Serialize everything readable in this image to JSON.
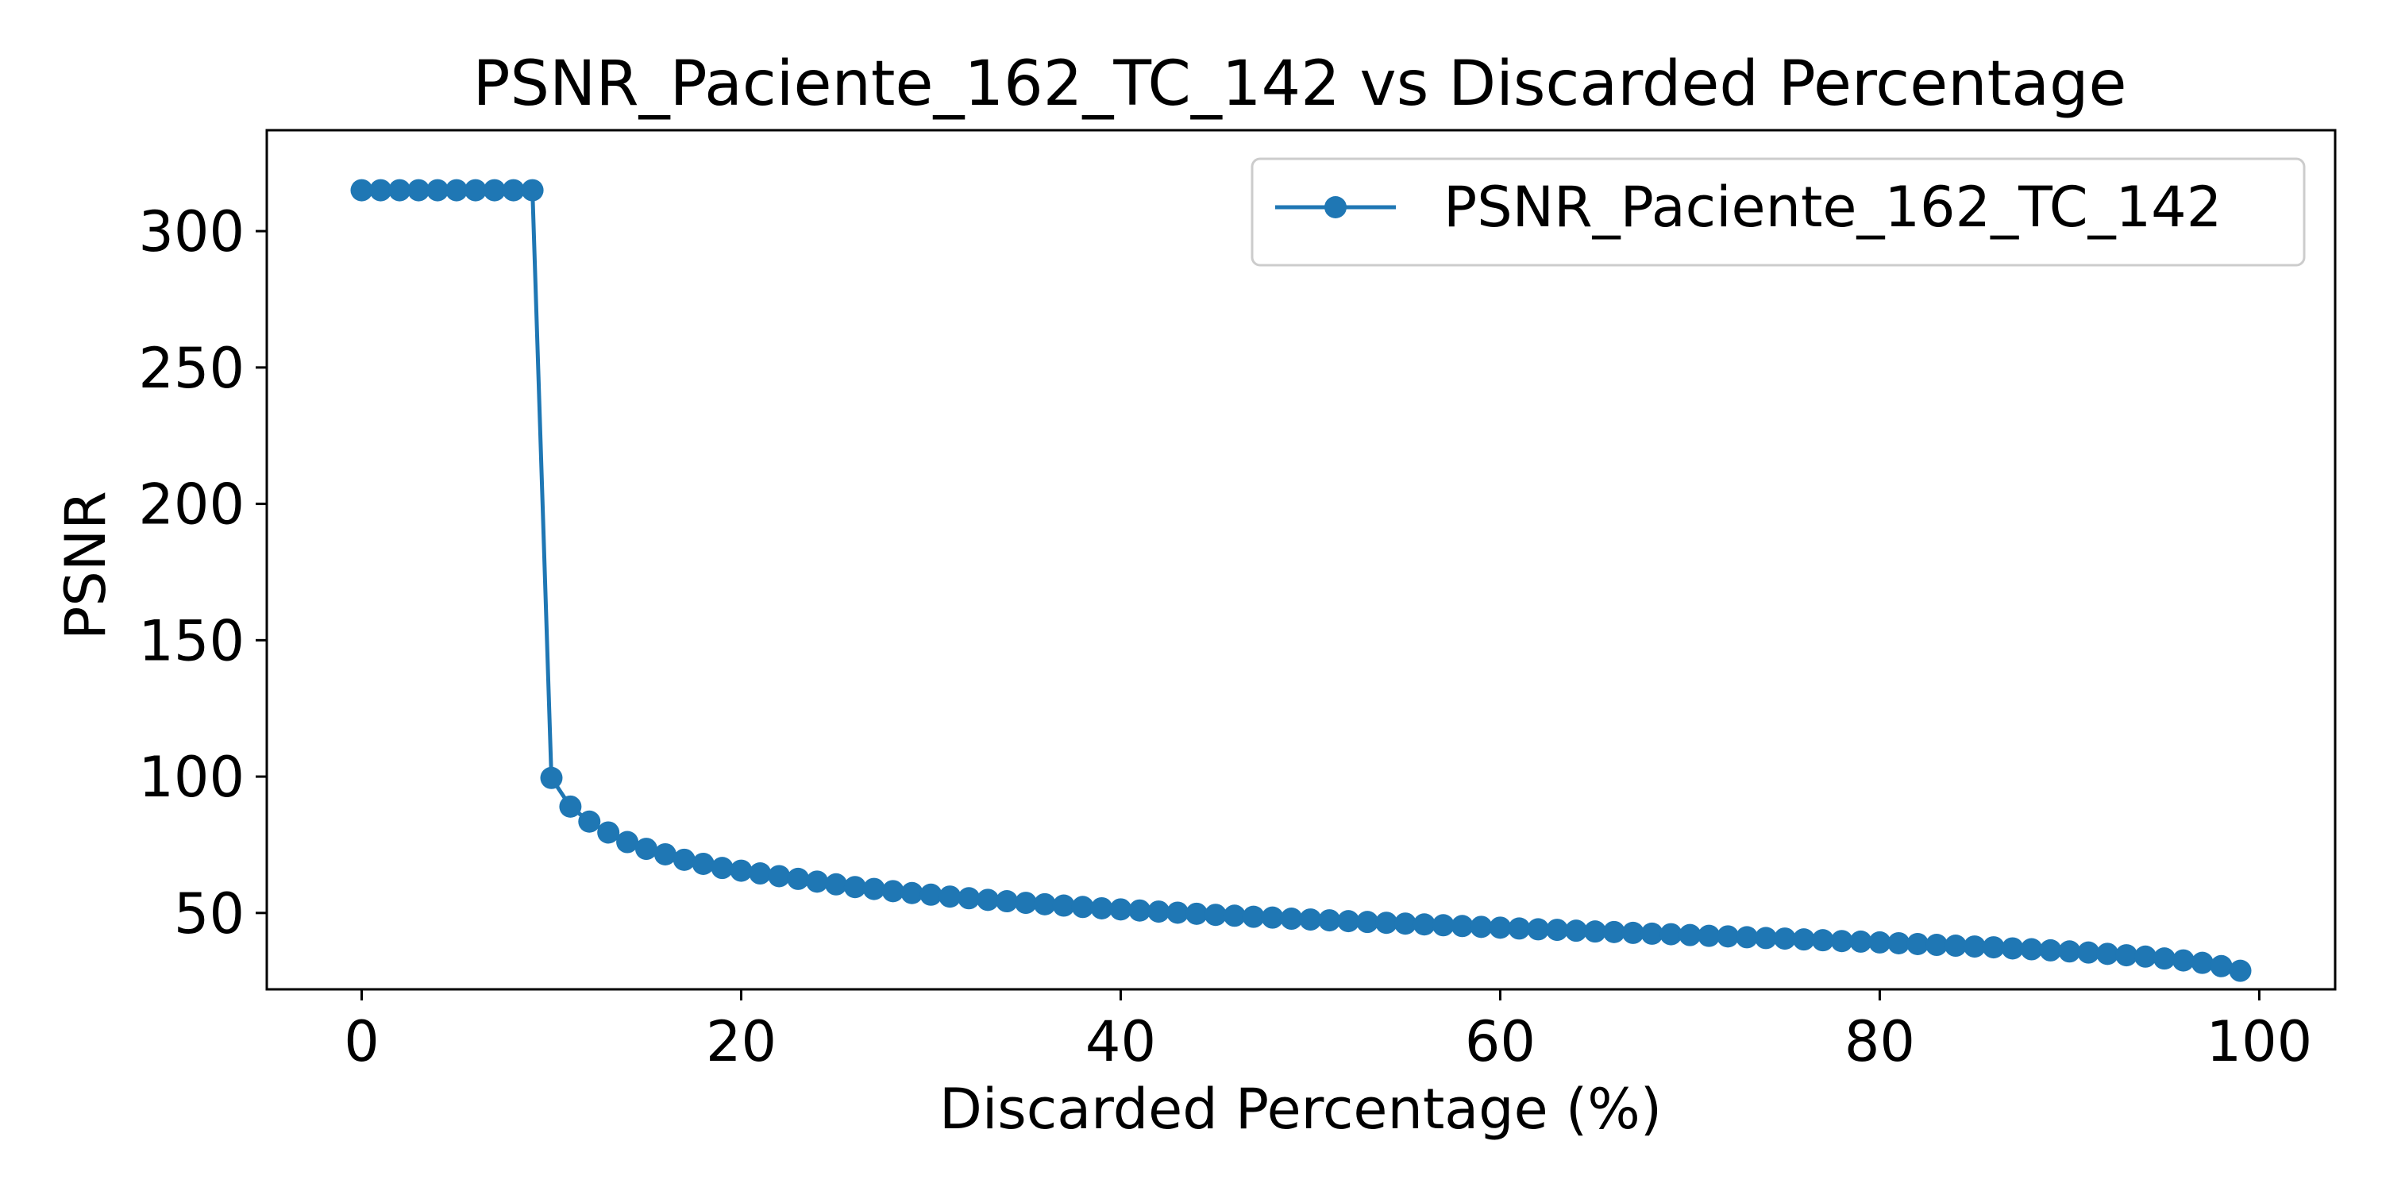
{
  "chart_data": {
    "type": "line",
    "title": "PSNR_Paciente_162_TC_142 vs Discarded Percentage",
    "xlabel": "Discarded Percentage (%)",
    "ylabel": "PSNR",
    "xlim": [
      -5,
      104
    ],
    "ylim": [
      22,
      337
    ],
    "x_ticks": [
      0,
      20,
      40,
      60,
      80,
      100
    ],
    "y_ticks": [
      50,
      100,
      150,
      200,
      250,
      300
    ],
    "grid": false,
    "legend": "top-right",
    "series": [
      {
        "name": "PSNR_Paciente_162_TC_142",
        "color": "#1f77b4",
        "marker": "circle",
        "x": [
          0,
          1,
          2,
          3,
          4,
          5,
          6,
          7,
          8,
          9,
          10,
          11,
          12,
          13,
          14,
          15,
          16,
          17,
          18,
          19,
          20,
          21,
          22,
          23,
          24,
          25,
          26,
          27,
          28,
          29,
          30,
          31,
          32,
          33,
          34,
          35,
          36,
          37,
          38,
          39,
          40,
          41,
          42,
          43,
          44,
          45,
          46,
          47,
          48,
          49,
          50,
          51,
          52,
          53,
          54,
          55,
          56,
          57,
          58,
          59,
          60,
          61,
          62,
          63,
          64,
          65,
          66,
          67,
          68,
          69,
          70,
          71,
          72,
          73,
          74,
          75,
          76,
          77,
          78,
          79,
          80,
          81,
          82,
          83,
          84,
          85,
          86,
          87,
          88,
          89,
          90,
          91,
          92,
          93,
          94,
          95,
          96,
          97,
          98,
          99
        ],
        "values": [
          315,
          315,
          315,
          315,
          315,
          315,
          315,
          315,
          315,
          315,
          99.5,
          89,
          83.5,
          79.5,
          76,
          73.5,
          71.5,
          69.5,
          68,
          66.5,
          65.5,
          64.5,
          63.5,
          62.5,
          61.5,
          60.5,
          59.5,
          58.8,
          58,
          57.3,
          56.7,
          56,
          55.4,
          54.8,
          54.3,
          53.7,
          53.2,
          52.7,
          52.2,
          51.7,
          51.3,
          50.9,
          50.5,
          50.1,
          49.7,
          49.3,
          49,
          48.6,
          48.3,
          47.9,
          47.6,
          47.3,
          47,
          46.7,
          46.4,
          46.1,
          45.8,
          45.5,
          45.2,
          44.9,
          44.6,
          44.3,
          44,
          43.8,
          43.5,
          43.2,
          43,
          42.7,
          42.4,
          42.2,
          41.9,
          41.6,
          41.4,
          41.1,
          40.8,
          40.6,
          40.3,
          40,
          39.7,
          39.5,
          39.2,
          38.9,
          38.6,
          38.3,
          38,
          37.7,
          37.4,
          37,
          36.7,
          36.3,
          35.9,
          35.5,
          35,
          34.5,
          34,
          33.3,
          32.6,
          31.7,
          30.5,
          28.8
        ]
      }
    ]
  }
}
